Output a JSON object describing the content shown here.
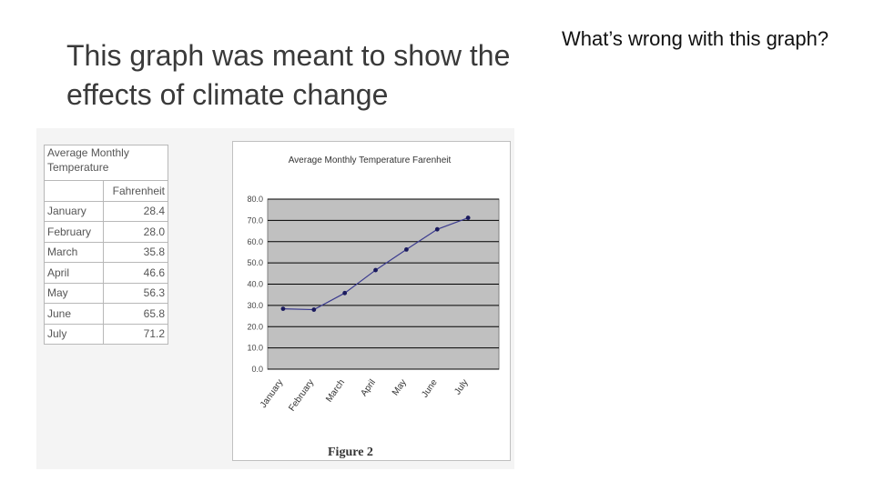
{
  "slide": {
    "title": "This graph was meant to show the effects of climate change",
    "question": "What’s wrong with this graph?"
  },
  "table": {
    "title": "Average Monthly Temperature",
    "column_header": "Fahrenheit",
    "rows": [
      {
        "month": "January",
        "value": "28.4"
      },
      {
        "month": "February",
        "value": "28.0"
      },
      {
        "month": "March",
        "value": "35.8"
      },
      {
        "month": "April",
        "value": "46.6"
      },
      {
        "month": "May",
        "value": "56.3"
      },
      {
        "month": "June",
        "value": "65.8"
      },
      {
        "month": "July",
        "value": "71.2"
      }
    ]
  },
  "figure_caption": "Figure 2",
  "chart_data": {
    "type": "line",
    "title": "Average Monthly Temperature Farenheit",
    "categories": [
      "January",
      "February",
      "March",
      "April",
      "May",
      "June",
      "July"
    ],
    "series": [
      {
        "values": [
          28.4,
          28.0,
          35.8,
          46.6,
          56.3,
          65.8,
          71.2
        ]
      }
    ],
    "yticks": [
      "0.0",
      "10.0",
      "20.0",
      "30.0",
      "40.0",
      "50.0",
      "60.0",
      "70.0",
      "80.0"
    ],
    "ylim": [
      0,
      80
    ],
    "grid": true,
    "colors": {
      "plot_area": "#c0c0c0",
      "line": "#3b3b8f",
      "grid": "#000000"
    }
  }
}
